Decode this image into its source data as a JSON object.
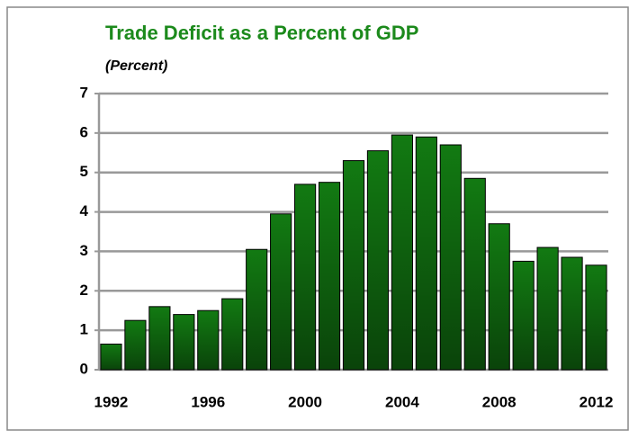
{
  "chart_data": {
    "type": "bar",
    "title": "Trade Deficit as a Percent of GDP",
    "subtitle": "(Percent)",
    "categories": [
      "1992",
      null,
      null,
      null,
      "1996",
      null,
      null,
      null,
      "2000",
      null,
      null,
      null,
      "2004",
      null,
      null,
      null,
      "2008",
      null,
      null,
      null,
      "2012"
    ],
    "values": [
      0.65,
      1.25,
      1.6,
      1.4,
      1.5,
      1.8,
      3.05,
      3.95,
      4.7,
      4.75,
      5.3,
      5.55,
      5.95,
      5.9,
      5.7,
      4.85,
      3.7,
      2.75,
      3.1,
      2.85,
      2.65
    ],
    "color": "#127a12",
    "ylim": [
      0,
      7
    ],
    "yticks": [
      0,
      1,
      2,
      3,
      4,
      5,
      6,
      7
    ],
    "grid": true
  }
}
